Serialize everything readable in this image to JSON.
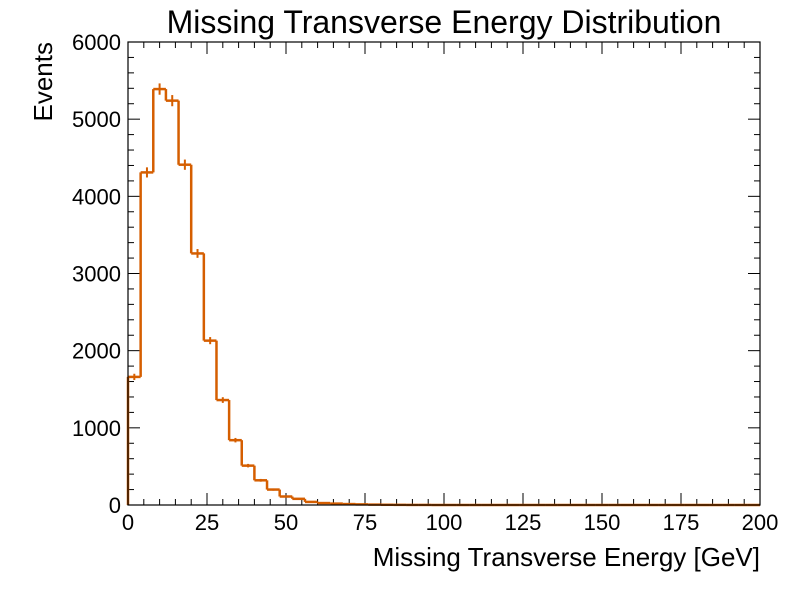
{
  "chart_data": {
    "type": "histogram",
    "title": "Missing Transverse Energy Distribution",
    "xlabel": "Missing Transverse Energy [GeV]",
    "ylabel": "Events",
    "xlim": [
      0,
      200
    ],
    "ylim": [
      0,
      6000
    ],
    "x_ticks": [
      0,
      25,
      50,
      75,
      100,
      125,
      150,
      175,
      200
    ],
    "y_ticks": [
      0,
      1000,
      2000,
      3000,
      4000,
      5000,
      6000
    ],
    "bin_width": 4,
    "grid": false,
    "color": "#d55e00",
    "series": [
      {
        "values": [
          1660,
          4310,
          5390,
          5240,
          4410,
          3260,
          2130,
          1360,
          840,
          510,
          320,
          200,
          110,
          80,
          40,
          25,
          18,
          12,
          8,
          5,
          3,
          2,
          1,
          1,
          0,
          0,
          0,
          0,
          0,
          0,
          0,
          0,
          0,
          0,
          0,
          0,
          0,
          0,
          0,
          0,
          0,
          0,
          0,
          0,
          0,
          0,
          0,
          0,
          0,
          0
        ]
      }
    ]
  }
}
